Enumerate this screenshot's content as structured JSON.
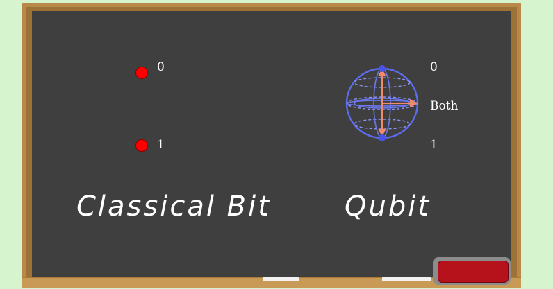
{
  "classical": {
    "title": "Classical Bit",
    "state0_label": "0",
    "state1_label": "1",
    "dot_color": "#ff0000"
  },
  "qubit": {
    "title": "Qubit",
    "state0_label": "0",
    "both_label": "Both",
    "state1_label": "1",
    "sphere_color": "#5b6cf0",
    "arrow_color": "#f08a6a"
  },
  "colors": {
    "board": "#3f3f3f",
    "frame": "#b98a47",
    "eraser": "#b5121b",
    "background": "#d6f5cf"
  }
}
